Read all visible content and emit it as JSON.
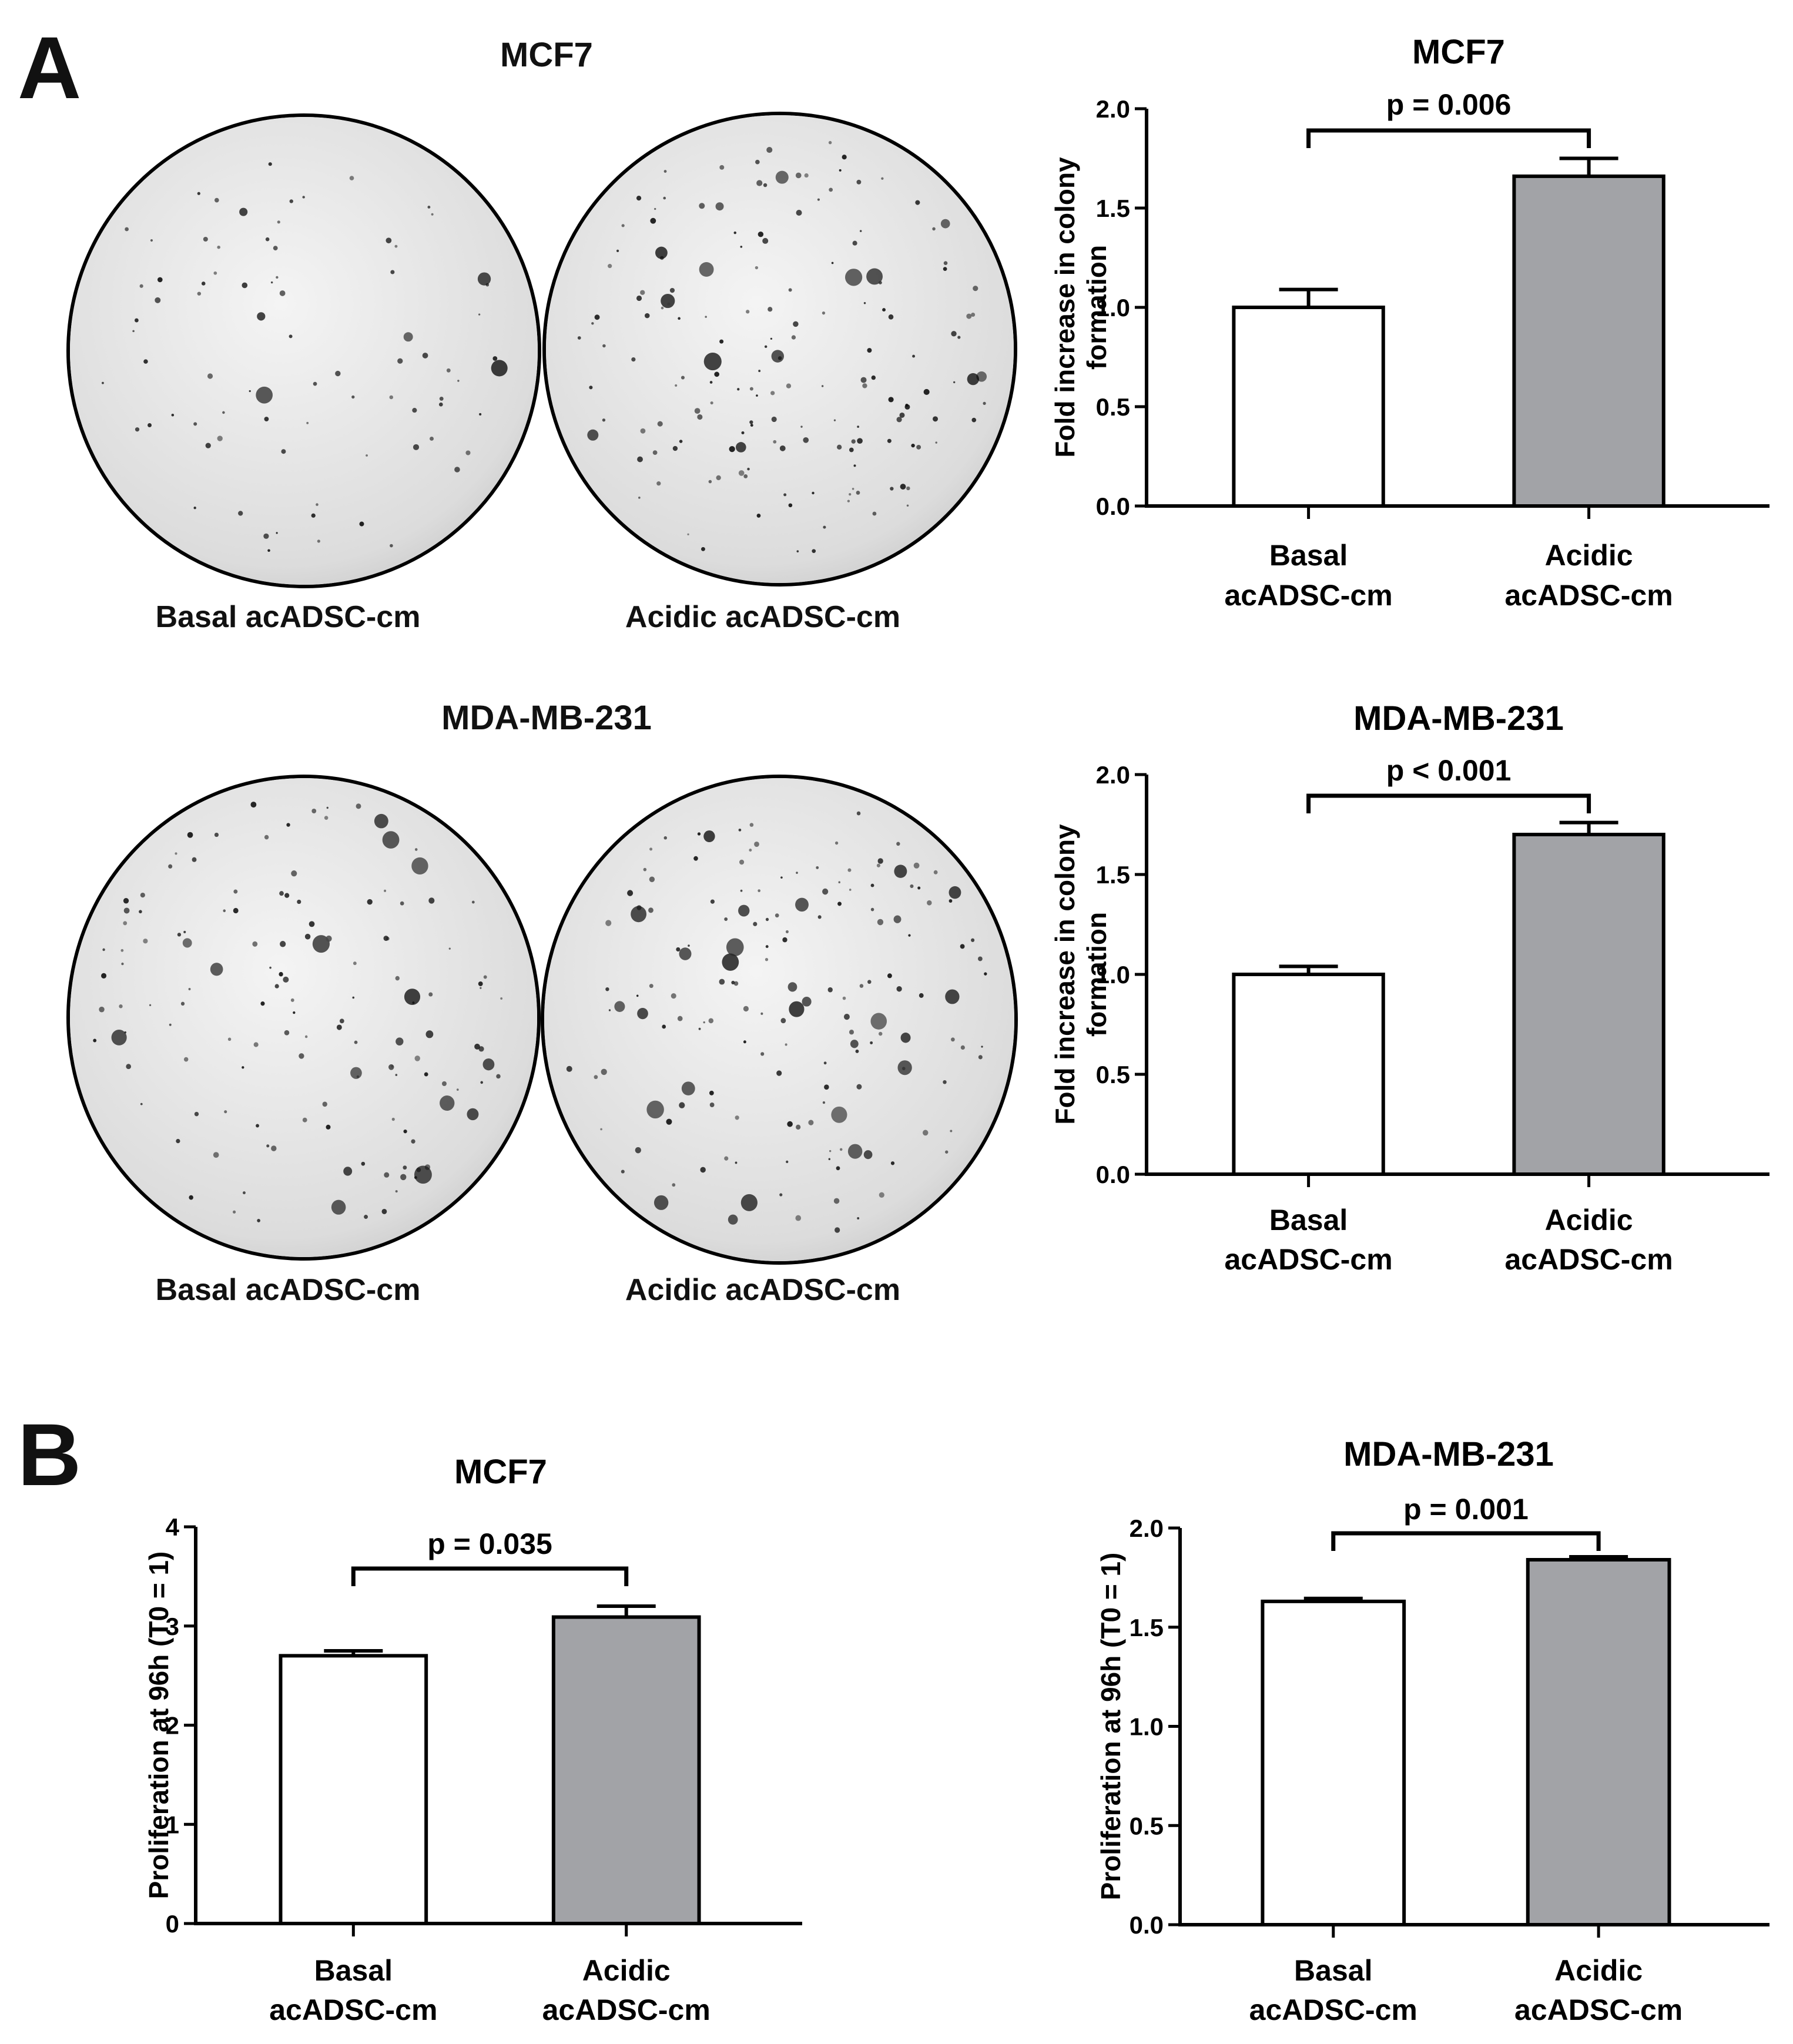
{
  "panels": {
    "a": {
      "letter": "A",
      "dishes": [
        {
          "cell_line": "MCF7",
          "captions": [
            "Basal acADSC-cm",
            "Acidic acADSC-cm"
          ]
        },
        {
          "cell_line": "MDA-MB-231",
          "captions": [
            "Basal acADSC-cm",
            "Acidic acADSC-cm"
          ]
        }
      ]
    },
    "b": {
      "letter": "B"
    }
  },
  "chart_data": [
    {
      "type": "bar",
      "title": "MCF7",
      "ylabel": [
        "Fold increase in colony",
        "formation"
      ],
      "categories": [
        [
          "Basal",
          "acADSC-cm"
        ],
        [
          "Acidic",
          "acADSC-cm"
        ]
      ],
      "values": [
        1.0,
        1.66
      ],
      "errors": [
        0.09,
        0.09
      ],
      "colors": [
        "#ffffff",
        "#a2a3a7"
      ],
      "ylim": [
        0,
        2.0
      ],
      "yticks": [
        "0.0",
        "0.5",
        "1.0",
        "1.5",
        "2.0"
      ],
      "ytick_values": [
        0,
        0.5,
        1.0,
        1.5,
        2.0
      ],
      "pvalue": "p = 0.006"
    },
    {
      "type": "bar",
      "title": "MDA-MB-231",
      "ylabel": [
        "Fold increase in colony",
        "formation"
      ],
      "categories": [
        [
          "Basal",
          "acADSC-cm"
        ],
        [
          "Acidic",
          "acADSC-cm"
        ]
      ],
      "values": [
        1.0,
        1.7
      ],
      "errors": [
        0.04,
        0.06
      ],
      "colors": [
        "#ffffff",
        "#a2a3a7"
      ],
      "ylim": [
        0,
        2.0
      ],
      "yticks": [
        "0.0",
        "0.5",
        "1.0",
        "1.5",
        "2.0"
      ],
      "ytick_values": [
        0,
        0.5,
        1.0,
        1.5,
        2.0
      ],
      "pvalue": "p < 0.001"
    },
    {
      "type": "bar",
      "title": "MCF7",
      "ylabel": [
        "Proliferation at 96h (T0 = 1)"
      ],
      "categories": [
        [
          "Basal",
          "acADSC-cm"
        ],
        [
          "Acidic",
          "acADSC-cm"
        ]
      ],
      "values": [
        2.7,
        3.09
      ],
      "errors": [
        0.05,
        0.11
      ],
      "colors": [
        "#ffffff",
        "#a2a3a7"
      ],
      "ylim": [
        0,
        4
      ],
      "yticks": [
        "0",
        "1",
        "2",
        "3",
        "4"
      ],
      "ytick_values": [
        0,
        1,
        2,
        3,
        4
      ],
      "pvalue": "p = 0.035"
    },
    {
      "type": "bar",
      "title": "MDA-MB-231",
      "ylabel": [
        "Proliferation at 96h (T0 = 1)"
      ],
      "categories": [
        [
          "Basal",
          "acADSC-cm"
        ],
        [
          "Acidic",
          "acADSC-cm"
        ]
      ],
      "values": [
        1.63,
        1.84
      ],
      "errors": [
        0.015,
        0.015
      ],
      "colors": [
        "#ffffff",
        "#a2a3a7"
      ],
      "ylim": [
        0,
        2.0
      ],
      "yticks": [
        "0.0",
        "0.5",
        "1.0",
        "1.5",
        "2.0"
      ],
      "ytick_values": [
        0,
        0.5,
        1.0,
        1.5,
        2.0
      ],
      "pvalue": "p = 0.001"
    }
  ]
}
